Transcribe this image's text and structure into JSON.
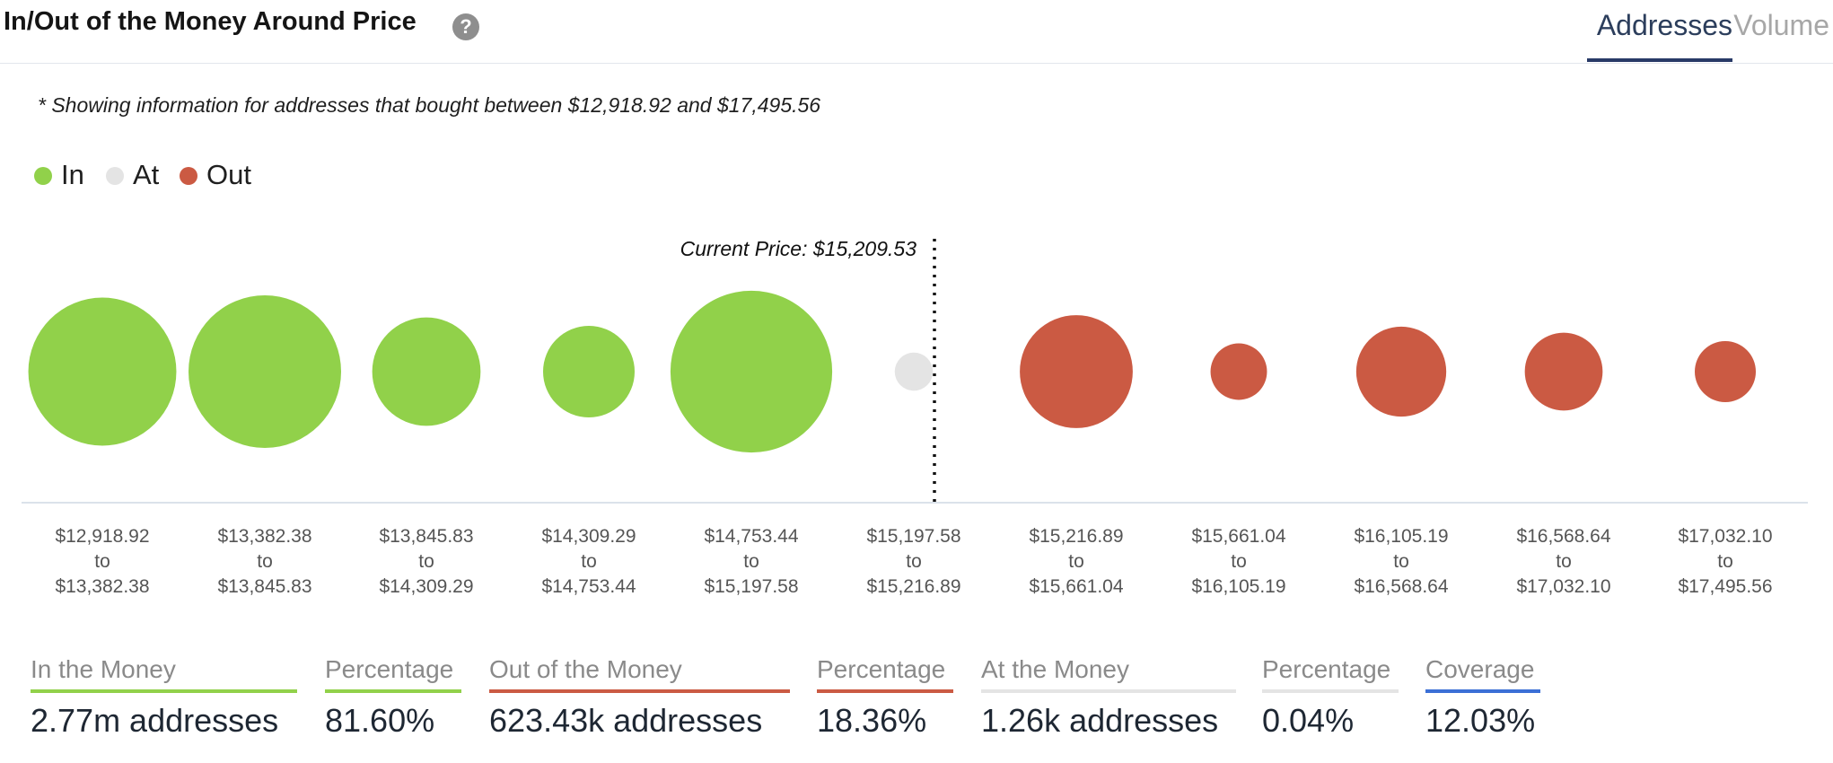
{
  "header": {
    "title": "In/Out of the Money Around Price",
    "help_icon": "question-circle-icon",
    "tabs": [
      {
        "label": "Addresses",
        "active": true
      },
      {
        "label": "Volume",
        "active": false
      }
    ]
  },
  "note": "* Showing information for addresses that bought between $12,918.92 and $17,495.56",
  "legend": [
    {
      "label": "In",
      "color": "#91d14a"
    },
    {
      "label": "At",
      "color": "#e4e4e4"
    },
    {
      "label": "Out",
      "color": "#cb5a43"
    }
  ],
  "chart_data": {
    "type": "scatter",
    "encoding": "bubble area proportional to number of addresses",
    "current_price_label": "Current Price: $15,209.53",
    "current_price": 15209.53,
    "colors": {
      "in": "#91d14a",
      "at": "#e4e4e4",
      "out": "#cb5a43"
    },
    "buckets": [
      {
        "from": "$12,918.92",
        "to": "$13,382.38",
        "status": "in",
        "relative_size": 0.97
      },
      {
        "from": "$13,382.38",
        "to": "$13,845.83",
        "status": "in",
        "relative_size": 1.0
      },
      {
        "from": "$13,845.83",
        "to": "$14,309.29",
        "status": "in",
        "relative_size": 0.71
      },
      {
        "from": "$14,309.29",
        "to": "$14,753.44",
        "status": "in",
        "relative_size": 0.6
      },
      {
        "from": "$14,753.44",
        "to": "$15,197.58",
        "status": "in",
        "relative_size": 1.06
      },
      {
        "from": "$15,197.58",
        "to": "$15,216.89",
        "status": "at",
        "relative_size": 0.25
      },
      {
        "from": "$15,216.89",
        "to": "$15,661.04",
        "status": "out",
        "relative_size": 0.74
      },
      {
        "from": "$15,661.04",
        "to": "$16,105.19",
        "status": "out",
        "relative_size": 0.37
      },
      {
        "from": "$16,105.19",
        "to": "$16,568.64",
        "status": "out",
        "relative_size": 0.59
      },
      {
        "from": "$16,568.64",
        "to": "$17,032.10",
        "status": "out",
        "relative_size": 0.51
      },
      {
        "from": "$17,032.10",
        "to": "$17,495.56",
        "status": "out",
        "relative_size": 0.4
      }
    ],
    "range_connector": "to"
  },
  "stats": [
    {
      "label": "In the Money",
      "value": "2.77m addresses",
      "color": "#91d14a"
    },
    {
      "label": "Percentage",
      "value": "81.60%",
      "color": "#91d14a"
    },
    {
      "label": "Out of the Money",
      "value": "623.43k addresses",
      "color": "#cb5a43"
    },
    {
      "label": "Percentage",
      "value": "18.36%",
      "color": "#cb5a43"
    },
    {
      "label": "At the Money",
      "value": "1.26k addresses",
      "color": "#e4e4e4"
    },
    {
      "label": "Percentage",
      "value": "0.04%",
      "color": "#e4e4e4"
    },
    {
      "label": "Coverage",
      "value": "12.03%",
      "color": "#3b6fd6"
    }
  ]
}
